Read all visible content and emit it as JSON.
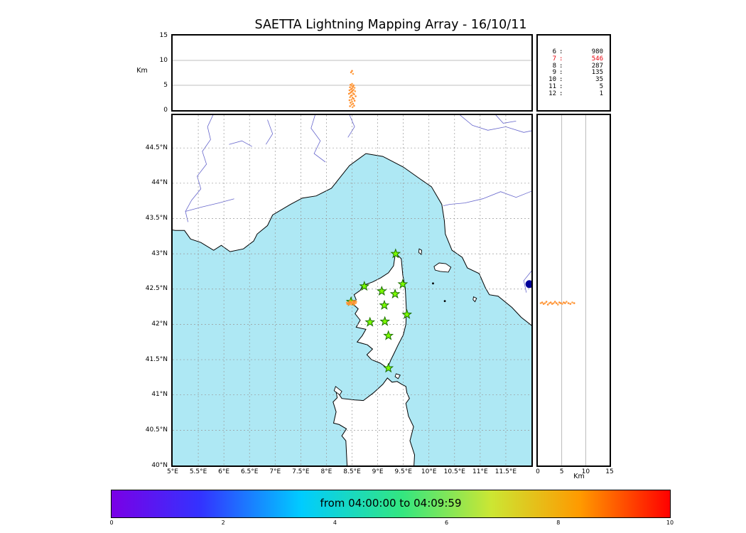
{
  "title": "SAETTA Lightning Mapping Array - 16/10/11",
  "colors": {
    "sea": "#aee8f4",
    "land": "#ffffff",
    "coast": "#000000",
    "river": "#6666cc",
    "grid": "#999999",
    "lightning_orange": "#ff9133",
    "lightning_orange_alt": "#ffa64d",
    "station_green": "#7cfc00",
    "station_edge": "#1a6e00",
    "blue_marker": "#000099",
    "highlight_red": "#e8000b"
  },
  "stats_panel": {
    "rows": [
      {
        "level": "6",
        "value": "980",
        "highlighted": false
      },
      {
        "level": "7",
        "value": "546",
        "highlighted": true
      },
      {
        "level": "8",
        "value": "287",
        "highlighted": false
      },
      {
        "level": "9",
        "value": "135",
        "highlighted": false
      },
      {
        "level": "10",
        "value": "35",
        "highlighted": false
      },
      {
        "level": "11",
        "value": "5",
        "highlighted": false
      },
      {
        "level": "12",
        "value": "1",
        "highlighted": false
      }
    ]
  },
  "axes": {
    "altitude_label": "Km",
    "altitude_ticks": [
      0,
      5,
      10,
      15
    ],
    "lat_ticks": [
      {
        "v": 40,
        "label": "40°N"
      },
      {
        "v": 40.5,
        "label": "40.5°N"
      },
      {
        "v": 41,
        "label": "41°N"
      },
      {
        "v": 41.5,
        "label": "41.5°N"
      },
      {
        "v": 42,
        "label": "42°N"
      },
      {
        "v": 42.5,
        "label": "42.5°N"
      },
      {
        "v": 43,
        "label": "43°N"
      },
      {
        "v": 43.5,
        "label": "43.5°N"
      },
      {
        "v": 44,
        "label": "44°N"
      },
      {
        "v": 44.5,
        "label": "44.5°N"
      }
    ],
    "lon_ticks": [
      {
        "v": 5,
        "label": "5°E"
      },
      {
        "v": 5.5,
        "label": "5.5°E"
      },
      {
        "v": 6,
        "label": "6°E"
      },
      {
        "v": 6.5,
        "label": "6.5°E"
      },
      {
        "v": 7,
        "label": "7°E"
      },
      {
        "v": 7.5,
        "label": "7.5°E"
      },
      {
        "v": 8,
        "label": "8°E"
      },
      {
        "v": 8.5,
        "label": "8.5°E"
      },
      {
        "v": 9,
        "label": "9°E"
      },
      {
        "v": 9.5,
        "label": "9.5°E"
      },
      {
        "v": 10,
        "label": "10°E"
      },
      {
        "v": 10.5,
        "label": "10.5°E"
      },
      {
        "v": 11,
        "label": "11°E"
      },
      {
        "v": 11.5,
        "label": "11.5°E"
      }
    ]
  },
  "colorbar": {
    "label": "from 04:00:00 to 04:09:59",
    "ticks": [
      0,
      2,
      4,
      6,
      8,
      10
    ],
    "range": [
      0,
      10
    ]
  },
  "chart_data": {
    "type": "scatter",
    "title": "SAETTA Lightning Mapping Array - 16/10/11",
    "map_extent": {
      "lon": [
        5,
        12
      ],
      "lat": [
        40,
        44.965
      ]
    },
    "altitude_range_km": [
      0,
      15
    ],
    "source_counts_by_level": {
      "6": 980,
      "7": 546,
      "8": 287,
      "9": 135,
      "10": 35,
      "11": 5,
      "12": 1
    },
    "time_window": {
      "start": "04:00:00",
      "end": "04:09:59",
      "colorbar_minutes": [
        0,
        10
      ]
    },
    "stations_lon_lat": [
      [
        9.35,
        43.0
      ],
      [
        8.74,
        42.54
      ],
      [
        9.08,
        42.47
      ],
      [
        9.49,
        42.57
      ],
      [
        9.34,
        42.43
      ],
      [
        8.48,
        42.32
      ],
      [
        9.13,
        42.27
      ],
      [
        9.57,
        42.14
      ],
      [
        8.85,
        42.03
      ],
      [
        9.14,
        42.04
      ],
      [
        9.21,
        41.84
      ],
      [
        9.21,
        41.38
      ]
    ],
    "flash_cluster": {
      "approx_center": {
        "lon": 8.5,
        "lat": 42.3,
        "alt_km_range": [
          0.5,
          8
        ]
      },
      "top_panel_points_lon_alt": [
        [
          8.5,
          5.3
        ],
        [
          8.47,
          5.1
        ],
        [
          8.53,
          5.0
        ],
        [
          8.49,
          4.9
        ],
        [
          8.52,
          4.7
        ],
        [
          8.46,
          4.6
        ],
        [
          8.55,
          4.5
        ],
        [
          8.5,
          4.4
        ],
        [
          8.48,
          4.2
        ],
        [
          8.53,
          4.1
        ],
        [
          8.45,
          4.0
        ],
        [
          8.51,
          3.9
        ],
        [
          8.56,
          3.8
        ],
        [
          8.49,
          3.7
        ],
        [
          8.47,
          3.5
        ],
        [
          8.52,
          3.4
        ],
        [
          8.44,
          3.3
        ],
        [
          8.54,
          3.2
        ],
        [
          8.5,
          3.0
        ],
        [
          8.48,
          2.9
        ],
        [
          8.57,
          2.8
        ],
        [
          8.46,
          2.6
        ],
        [
          8.51,
          2.5
        ],
        [
          8.53,
          2.3
        ],
        [
          8.49,
          2.1
        ],
        [
          8.45,
          2.0
        ],
        [
          8.55,
          1.9
        ],
        [
          8.5,
          1.7
        ],
        [
          8.47,
          1.5
        ],
        [
          8.52,
          1.3
        ],
        [
          8.49,
          1.1
        ],
        [
          8.54,
          0.9
        ],
        [
          8.46,
          0.8
        ],
        [
          8.51,
          0.6
        ],
        [
          8.48,
          7.6
        ],
        [
          8.5,
          7.9
        ],
        [
          8.52,
          7.3
        ]
      ],
      "map_points_lon_lat": [
        [
          8.4,
          42.31
        ],
        [
          8.43,
          42.3
        ],
        [
          8.45,
          42.32
        ],
        [
          8.47,
          42.29
        ],
        [
          8.48,
          42.31
        ],
        [
          8.5,
          42.3
        ],
        [
          8.51,
          42.32
        ],
        [
          8.53,
          42.3
        ],
        [
          8.55,
          42.31
        ],
        [
          8.57,
          42.3
        ],
        [
          8.44,
          42.28
        ],
        [
          8.46,
          42.33
        ],
        [
          8.49,
          42.28
        ],
        [
          8.52,
          42.33
        ],
        [
          8.54,
          42.28
        ],
        [
          8.58,
          42.32
        ],
        [
          8.41,
          42.29
        ],
        [
          8.56,
          42.33
        ]
      ],
      "right_panel_points_alt_lat": [
        [
          0.6,
          42.3
        ],
        [
          0.9,
          42.31
        ],
        [
          1.2,
          42.29
        ],
        [
          1.5,
          42.3
        ],
        [
          1.8,
          42.32
        ],
        [
          2.1,
          42.28
        ],
        [
          2.4,
          42.3
        ],
        [
          2.7,
          42.31
        ],
        [
          3.0,
          42.29
        ],
        [
          3.3,
          42.3
        ],
        [
          3.6,
          42.32
        ],
        [
          3.9,
          42.3
        ],
        [
          4.2,
          42.28
        ],
        [
          4.5,
          42.31
        ],
        [
          4.8,
          42.3
        ],
        [
          5.1,
          42.29
        ],
        [
          5.4,
          42.31
        ],
        [
          5.7,
          42.3
        ],
        [
          6.0,
          42.32
        ],
        [
          6.4,
          42.3
        ],
        [
          6.8,
          42.29
        ],
        [
          7.2,
          42.31
        ],
        [
          7.6,
          42.3
        ]
      ]
    },
    "blue_marker_lon_lat": [
      11.96,
      42.57
    ]
  },
  "map_geometry": {
    "mainland": [
      [
        4.9,
        45.2
      ],
      [
        12.1,
        45.2
      ],
      [
        12.1,
        41.93
      ],
      [
        11.8,
        42.1
      ],
      [
        11.62,
        42.24
      ],
      [
        11.35,
        42.4
      ],
      [
        11.18,
        42.42
      ],
      [
        11.1,
        42.52
      ],
      [
        10.98,
        42.72
      ],
      [
        10.75,
        42.8
      ],
      [
        10.65,
        42.95
      ],
      [
        10.45,
        43.05
      ],
      [
        10.32,
        43.28
      ],
      [
        10.3,
        43.47
      ],
      [
        10.25,
        43.7
      ],
      [
        10.05,
        43.95
      ],
      [
        9.83,
        44.06
      ],
      [
        9.5,
        44.23
      ],
      [
        9.1,
        44.38
      ],
      [
        8.77,
        44.42
      ],
      [
        8.45,
        44.25
      ],
      [
        8.1,
        43.93
      ],
      [
        7.8,
        43.82
      ],
      [
        7.53,
        43.79
      ],
      [
        7.3,
        43.7
      ],
      [
        6.95,
        43.55
      ],
      [
        6.85,
        43.4
      ],
      [
        6.65,
        43.28
      ],
      [
        6.58,
        43.18
      ],
      [
        6.38,
        43.07
      ],
      [
        6.12,
        43.03
      ],
      [
        5.95,
        43.12
      ],
      [
        5.8,
        43.05
      ],
      [
        5.55,
        43.16
      ],
      [
        5.35,
        43.21
      ],
      [
        5.23,
        43.33
      ],
      [
        5.05,
        43.33
      ],
      [
        4.9,
        43.35
      ]
    ],
    "corsica": [
      [
        9.345,
        43.01
      ],
      [
        9.46,
        42.93
      ],
      [
        9.49,
        42.7
      ],
      [
        9.54,
        42.5
      ],
      [
        9.56,
        42.2
      ],
      [
        9.55,
        42.0
      ],
      [
        9.5,
        41.85
      ],
      [
        9.4,
        41.71
      ],
      [
        9.32,
        41.59
      ],
      [
        9.26,
        41.5
      ],
      [
        9.19,
        41.38
      ],
      [
        9.05,
        41.45
      ],
      [
        8.88,
        41.5
      ],
      [
        8.79,
        41.57
      ],
      [
        8.9,
        41.65
      ],
      [
        8.8,
        41.71
      ],
      [
        8.6,
        41.75
      ],
      [
        8.7,
        41.84
      ],
      [
        8.77,
        41.93
      ],
      [
        8.58,
        41.96
      ],
      [
        8.66,
        42.06
      ],
      [
        8.56,
        42.15
      ],
      [
        8.62,
        42.22
      ],
      [
        8.53,
        42.28
      ],
      [
        8.58,
        42.35
      ],
      [
        8.54,
        42.42
      ],
      [
        8.66,
        42.48
      ],
      [
        8.71,
        42.55
      ],
      [
        8.9,
        42.6
      ],
      [
        9.06,
        42.66
      ],
      [
        9.21,
        42.73
      ],
      [
        9.31,
        42.83
      ],
      [
        9.33,
        42.93
      ]
    ],
    "sardinia": [
      [
        8.41,
        39.9
      ],
      [
        8.38,
        40.35
      ],
      [
        8.3,
        40.42
      ],
      [
        8.39,
        40.52
      ],
      [
        8.25,
        40.58
      ],
      [
        8.14,
        40.6
      ],
      [
        8.19,
        40.76
      ],
      [
        8.13,
        40.9
      ],
      [
        8.21,
        40.96
      ],
      [
        8.18,
        41.08
      ],
      [
        8.3,
        40.95
      ],
      [
        8.55,
        40.93
      ],
      [
        8.72,
        40.92
      ],
      [
        8.92,
        41.03
      ],
      [
        9.1,
        41.15
      ],
      [
        9.19,
        41.24
      ],
      [
        9.28,
        41.18
      ],
      [
        9.38,
        41.19
      ],
      [
        9.47,
        41.15
      ],
      [
        9.55,
        41.12
      ],
      [
        9.57,
        41.03
      ],
      [
        9.62,
        40.95
      ],
      [
        9.55,
        40.88
      ],
      [
        9.6,
        40.7
      ],
      [
        9.7,
        40.55
      ],
      [
        9.63,
        40.35
      ],
      [
        9.72,
        40.15
      ],
      [
        9.7,
        39.9
      ]
    ],
    "small_islands": [
      [
        [
          10.1,
          42.82
        ],
        [
          10.2,
          42.87
        ],
        [
          10.33,
          42.86
        ],
        [
          10.43,
          42.81
        ],
        [
          10.38,
          42.74
        ],
        [
          10.22,
          42.75
        ],
        [
          10.12,
          42.77
        ]
      ],
      [
        [
          9.81,
          43.07
        ],
        [
          9.86,
          43.05
        ],
        [
          9.85,
          42.99
        ],
        [
          9.8,
          43.02
        ]
      ],
      [
        [
          8.18,
          41.12
        ],
        [
          8.3,
          41.05
        ],
        [
          8.26,
          41.0
        ],
        [
          8.15,
          41.06
        ]
      ],
      [
        [
          9.36,
          41.3
        ],
        [
          9.44,
          41.28
        ],
        [
          9.4,
          41.23
        ],
        [
          9.34,
          41.26
        ]
      ],
      [
        [
          10.87,
          42.39
        ],
        [
          10.93,
          42.37
        ],
        [
          10.9,
          42.32
        ],
        [
          10.86,
          42.35
        ]
      ]
    ],
    "islet_dots": [
      [
        10.08,
        42.58
      ],
      [
        10.31,
        42.33
      ]
    ],
    "rivers": [
      [
        [
          5.79,
          44.97
        ],
        [
          5.68,
          44.8
        ],
        [
          5.74,
          44.62
        ],
        [
          5.58,
          44.45
        ],
        [
          5.66,
          44.27
        ],
        [
          5.48,
          44.1
        ],
        [
          5.55,
          43.92
        ],
        [
          5.37,
          43.76
        ],
        [
          5.25,
          43.6
        ],
        [
          5.3,
          43.45
        ]
      ],
      [
        [
          5.25,
          43.6
        ],
        [
          5.55,
          43.66
        ],
        [
          5.9,
          43.72
        ],
        [
          6.2,
          43.78
        ]
      ],
      [
        [
          6.1,
          44.55
        ],
        [
          6.35,
          44.6
        ],
        [
          6.55,
          44.52
        ]
      ],
      [
        [
          7.78,
          44.97
        ],
        [
          7.7,
          44.78
        ],
        [
          7.88,
          44.6
        ],
        [
          7.76,
          44.42
        ],
        [
          7.98,
          44.3
        ]
      ],
      [
        [
          8.45,
          44.97
        ],
        [
          8.55,
          44.8
        ],
        [
          8.42,
          44.65
        ]
      ],
      [
        [
          10.6,
          44.97
        ],
        [
          10.85,
          44.82
        ],
        [
          11.15,
          44.75
        ],
        [
          11.5,
          44.8
        ],
        [
          11.85,
          44.72
        ],
        [
          12.05,
          44.75
        ]
      ],
      [
        [
          11.3,
          44.97
        ],
        [
          11.45,
          44.85
        ],
        [
          11.7,
          44.88
        ]
      ],
      [
        [
          12.05,
          43.9
        ],
        [
          11.7,
          43.8
        ],
        [
          11.4,
          43.88
        ],
        [
          11.05,
          43.78
        ],
        [
          10.7,
          43.72
        ],
        [
          10.4,
          43.7
        ],
        [
          10.28,
          43.68
        ]
      ],
      [
        [
          12.05,
          42.8
        ],
        [
          11.85,
          42.62
        ],
        [
          11.9,
          42.45
        ]
      ],
      [
        [
          6.85,
          44.9
        ],
        [
          6.95,
          44.7
        ],
        [
          6.82,
          44.55
        ]
      ]
    ]
  },
  "labels": {
    "km_top": "Km",
    "km_right": "Km"
  }
}
